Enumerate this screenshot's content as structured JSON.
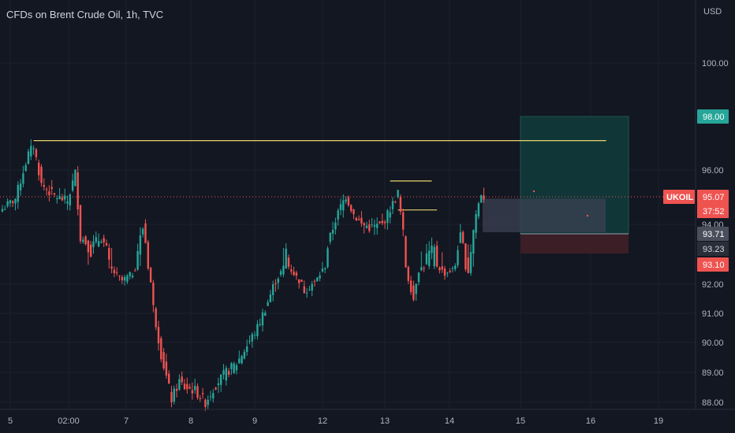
{
  "title": "CFDs on Brent Crude Oil, 1h, TVC",
  "currency": "USD",
  "symbol": "UKOIL",
  "countdown": "37:52",
  "colors": {
    "background": "#131722",
    "up": "#26a69a",
    "down": "#ef5350",
    "grid": "#1e222d",
    "resistance": "#e9d56b",
    "target_zone": "#10383a",
    "stop_zone": "#3d1f27",
    "entry_zone": "#3b4151"
  },
  "chart_data": {
    "type": "candlestick",
    "ylim": [
      87.9,
      101.3
    ],
    "y_ticks": [
      "100.00",
      "96.00",
      "94.00",
      "92.00",
      "91.00",
      "90.00",
      "89.00",
      "88.00"
    ],
    "x_ticks": [
      "5",
      "02:00",
      "7",
      "8",
      "9",
      "12",
      "13",
      "14",
      "15",
      "16",
      "19"
    ],
    "price_tags": [
      {
        "label": "98.00",
        "value": 98.0,
        "style": "target"
      },
      {
        "label": "95.07",
        "value": 95.07,
        "style": "last"
      },
      {
        "label": "93.71",
        "value": 93.71,
        "style": "entry"
      },
      {
        "label": "93.23",
        "value": 93.23,
        "style": "neutral"
      },
      {
        "label": "93.10",
        "value": 93.1,
        "style": "stop"
      }
    ],
    "close_path": [
      {
        "i": 0,
        "p": 94.6
      },
      {
        "i": 5,
        "p": 95.0
      },
      {
        "i": 10,
        "p": 96.6
      },
      {
        "i": 12,
        "p": 96.9
      },
      {
        "i": 15,
        "p": 95.5
      },
      {
        "i": 20,
        "p": 95.1
      },
      {
        "i": 25,
        "p": 94.9
      },
      {
        "i": 28,
        "p": 95.9
      },
      {
        "i": 30,
        "p": 93.6
      },
      {
        "i": 34,
        "p": 93.3
      },
      {
        "i": 38,
        "p": 93.6
      },
      {
        "i": 42,
        "p": 92.8
      },
      {
        "i": 46,
        "p": 92.2
      },
      {
        "i": 50,
        "p": 92.6
      },
      {
        "i": 54,
        "p": 93.9
      },
      {
        "i": 56,
        "p": 93.0
      },
      {
        "i": 58,
        "p": 91.2
      },
      {
        "i": 61,
        "p": 89.6
      },
      {
        "i": 65,
        "p": 88.1
      },
      {
        "i": 68,
        "p": 88.7
      },
      {
        "i": 70,
        "p": 88.5
      },
      {
        "i": 74,
        "p": 88.4
      },
      {
        "i": 78,
        "p": 88.0
      },
      {
        "i": 82,
        "p": 88.6
      },
      {
        "i": 86,
        "p": 89.0
      },
      {
        "i": 90,
        "p": 89.3
      },
      {
        "i": 94,
        "p": 89.9
      },
      {
        "i": 98,
        "p": 90.5
      },
      {
        "i": 102,
        "p": 91.4
      },
      {
        "i": 106,
        "p": 92.4
      },
      {
        "i": 109,
        "p": 93.2
      },
      {
        "i": 112,
        "p": 92.6
      },
      {
        "i": 116,
        "p": 91.8
      },
      {
        "i": 120,
        "p": 92.1
      },
      {
        "i": 124,
        "p": 93.0
      },
      {
        "i": 127,
        "p": 93.9
      },
      {
        "i": 130,
        "p": 94.7
      },
      {
        "i": 132,
        "p": 95.1
      },
      {
        "i": 135,
        "p": 94.4
      },
      {
        "i": 138,
        "p": 94.0
      },
      {
        "i": 142,
        "p": 93.9
      },
      {
        "i": 146,
        "p": 94.0
      },
      {
        "i": 150,
        "p": 94.8
      },
      {
        "i": 152,
        "p": 95.2
      },
      {
        "i": 154,
        "p": 93.7
      },
      {
        "i": 156,
        "p": 92.3
      },
      {
        "i": 158,
        "p": 91.5
      },
      {
        "i": 160,
        "p": 92.8
      },
      {
        "i": 163,
        "p": 93.1
      },
      {
        "i": 166,
        "p": 93.2
      },
      {
        "i": 170,
        "p": 92.6
      },
      {
        "i": 173,
        "p": 92.8
      },
      {
        "i": 176,
        "p": 93.6
      },
      {
        "i": 179,
        "p": 92.7
      },
      {
        "i": 182,
        "p": 94.4
      },
      {
        "i": 184,
        "p": 95.2
      },
      {
        "i": 185,
        "p": 95.07
      }
    ],
    "resistance_lines": [
      {
        "price": 97.1,
        "from": 12,
        "to": 232
      },
      {
        "price": 95.62,
        "from": 149,
        "to": 165
      },
      {
        "price": 94.56,
        "from": 152,
        "to": 167
      }
    ],
    "position": {
      "target": 98.0,
      "entry_top": 95.0,
      "entry": 93.71,
      "stop": 93.1,
      "last": 95.07
    }
  }
}
